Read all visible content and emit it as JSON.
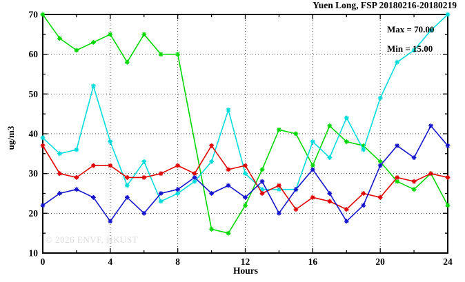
{
  "title": "Yuen Long, FSP 20180216-20180219",
  "watermark": "© 2026 ENVF, HKUST",
  "chart_data": {
    "type": "line",
    "title": "Yuen Long, FSP 20180216-20180219",
    "xlabel": "Hours",
    "ylabel": "ug/m3",
    "xlim": [
      0,
      24
    ],
    "ylim": [
      10,
      70
    ],
    "x_major_ticks": [
      0,
      4,
      8,
      12,
      16,
      20,
      24
    ],
    "x_minor_step": 2,
    "y_major_ticks": [
      10,
      20,
      30,
      40,
      50,
      60,
      70
    ],
    "y_minor_step": 5,
    "grid": true,
    "grid_x": [
      4,
      8,
      12,
      16,
      20
    ],
    "grid_y": [
      20,
      30,
      40,
      50,
      60
    ],
    "legend_position": "none",
    "stats": {
      "max": "Max = 70.00",
      "min": "Min = 15.00"
    },
    "x": [
      0,
      1,
      2,
      3,
      4,
      5,
      6,
      7,
      8,
      9,
      10,
      11,
      12,
      13,
      14,
      15,
      16,
      17,
      18,
      19,
      20,
      21,
      22,
      23,
      24
    ],
    "series": [
      {
        "name": "green-line",
        "color": "#00d800",
        "values": [
          70,
          64,
          61,
          63,
          65,
          58,
          65,
          60,
          60,
          null,
          16,
          15,
          22,
          31,
          41,
          40,
          32,
          42,
          38,
          37,
          33,
          28,
          26,
          30,
          22
        ]
      },
      {
        "name": "cyan-line",
        "color": "#00dcdc",
        "values": [
          39,
          35,
          36,
          52,
          38,
          27,
          33,
          23,
          25,
          28,
          33,
          46,
          30,
          26,
          26,
          26,
          38,
          34,
          44,
          36,
          49,
          58,
          61,
          66,
          70
        ]
      },
      {
        "name": "red-line",
        "color": "#e00000",
        "values": [
          37,
          30,
          29,
          32,
          32,
          29,
          29,
          30,
          32,
          30,
          37,
          31,
          32,
          25,
          27,
          21,
          24,
          23,
          21,
          25,
          24,
          29,
          28,
          30,
          29
        ]
      },
      {
        "name": "blue-line",
        "color": "#1414cc",
        "values": [
          22,
          25,
          26,
          24,
          18,
          24,
          20,
          25,
          26,
          29,
          25,
          27,
          24,
          28,
          20,
          26,
          31,
          25,
          18,
          22,
          32,
          37,
          34,
          42,
          37
        ]
      }
    ]
  }
}
